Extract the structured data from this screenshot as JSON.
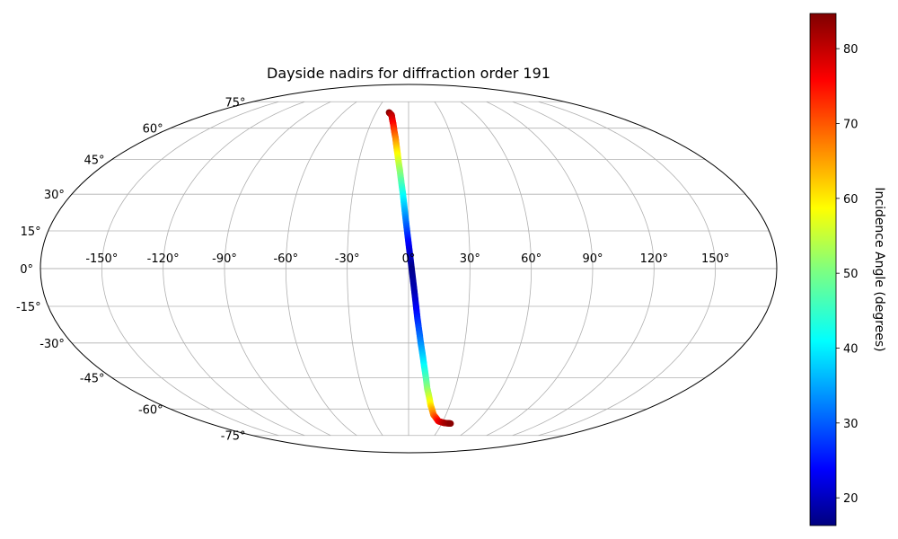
{
  "chart_data": {
    "type": "scatter",
    "projection": "mollweide",
    "title": "Dayside nadirs for diffraction order 191",
    "grid": true,
    "x_tick_labels": [
      "-150°",
      "-120°",
      "-90°",
      "-60°",
      "-30°",
      "0°",
      "30°",
      "60°",
      "90°",
      "120°",
      "150°"
    ],
    "x_tick_values": [
      -150,
      -120,
      -90,
      -60,
      -30,
      0,
      30,
      60,
      90,
      120,
      150
    ],
    "y_tick_labels": [
      "-75°",
      "-60°",
      "-45°",
      "-30°",
      "-15°",
      "0°",
      "15°",
      "30°",
      "45°",
      "60°",
      "75°"
    ],
    "y_tick_values": [
      -75,
      -60,
      -45,
      -30,
      -15,
      0,
      15,
      30,
      45,
      60,
      75
    ],
    "colorbar": {
      "label": "Incidence Angle (degrees)",
      "colormap": "jet",
      "range": [
        16.3,
        84.7
      ],
      "tick_labels": [
        "20",
        "30",
        "40",
        "50",
        "60",
        "70",
        "80"
      ],
      "tick_values": [
        20,
        30,
        40,
        50,
        60,
        70,
        80
      ],
      "placement": "right"
    },
    "track": {
      "description_points": [
        {
          "lat": 68.5,
          "lon": -18,
          "incidence": 84.7
        },
        {
          "lat": 67.0,
          "lon": -15,
          "incidence": 81
        },
        {
          "lat": 62.0,
          "lon": -12,
          "incidence": 76
        },
        {
          "lat": 55.0,
          "lon": -9,
          "incidence": 68
        },
        {
          "lat": 48.0,
          "lon": -7,
          "incidence": 60
        },
        {
          "lat": 40.0,
          "lon": -5,
          "incidence": 52
        },
        {
          "lat": 30.0,
          "lon": -3,
          "incidence": 43
        },
        {
          "lat": 20.0,
          "lon": -1.5,
          "incidence": 34
        },
        {
          "lat": 10.0,
          "lon": 0,
          "incidence": 25
        },
        {
          "lat": 0.0,
          "lon": 1.5,
          "incidence": 17
        },
        {
          "lat": -10.0,
          "lon": 3,
          "incidence": 20
        },
        {
          "lat": -20.0,
          "lon": 4.5,
          "incidence": 27
        },
        {
          "lat": -30.0,
          "lon": 6.5,
          "incidence": 34
        },
        {
          "lat": -40.0,
          "lon": 9,
          "incidence": 42
        },
        {
          "lat": -50.0,
          "lon": 12,
          "incidence": 51
        },
        {
          "lat": -58.0,
          "lon": 16,
          "incidence": 60
        },
        {
          "lat": -63.0,
          "lon": 20,
          "incidence": 68
        },
        {
          "lat": -66.5,
          "lon": 26,
          "incidence": 76
        },
        {
          "lat": -67.5,
          "lon": 32,
          "incidence": 81
        },
        {
          "lat": -67.8,
          "lon": 38,
          "incidence": 84
        }
      ]
    }
  }
}
